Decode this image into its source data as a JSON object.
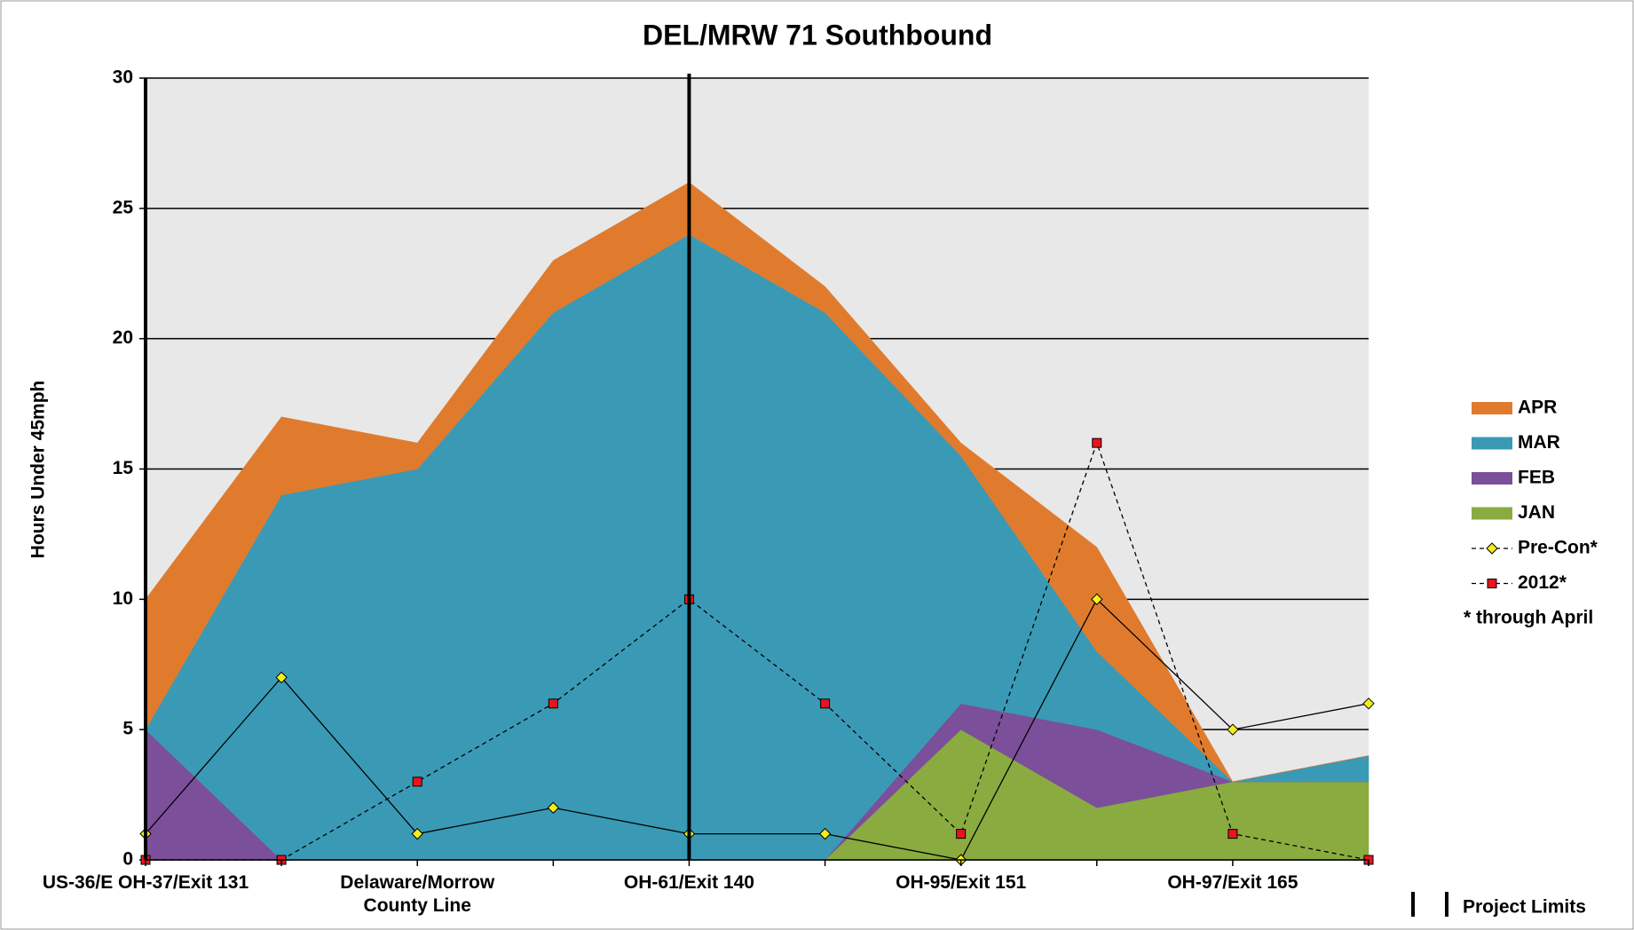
{
  "chart_data": {
    "type": "stacked_area",
    "title": "DEL/MRW 71 Southbound",
    "y_label": "Hours Under 45mph",
    "categories": [
      "US-36/E OH-37/Exit 131",
      null,
      "Delaware/Morrow\nCounty Line",
      null,
      "OH-61/Exit 140",
      null,
      "OH-95/Exit 151",
      null,
      "OH-97/Exit 165",
      null
    ],
    "series": [
      {
        "name": "JAN",
        "color": "#8aab3f",
        "kind": "area",
        "values": [
          0,
          0,
          0,
          0,
          0,
          0,
          5,
          2,
          3,
          3
        ]
      },
      {
        "name": "FEB",
        "color": "#7b4f9a",
        "kind": "area",
        "values": [
          5,
          0,
          0,
          0,
          0,
          0,
          1,
          3,
          0,
          0
        ]
      },
      {
        "name": "MAR",
        "color": "#3a9ab5",
        "kind": "area",
        "values": [
          0,
          14,
          15,
          21,
          24,
          21,
          9.5,
          3,
          0,
          1
        ]
      },
      {
        "name": "APR",
        "color": "#e07b2e",
        "kind": "area",
        "values": [
          5,
          3,
          1,
          2,
          2,
          1,
          0.5,
          4,
          0,
          0
        ]
      },
      {
        "name": "Pre-Con*",
        "color": "#f2ee1a",
        "kind": "line",
        "dashed": false,
        "values": [
          1,
          7,
          1,
          2,
          1,
          1,
          0,
          10,
          5,
          6
        ]
      },
      {
        "name": "2012*",
        "color": "#e8141e",
        "kind": "line",
        "dashed": true,
        "values": [
          0,
          0,
          3,
          6,
          10,
          6,
          1,
          16,
          1,
          0
        ]
      }
    ],
    "note": "* through April",
    "limits_label": "Project Limits",
    "ylim": [
      0,
      30
    ],
    "yticks": [
      0,
      5,
      10,
      15,
      20,
      25,
      30
    ],
    "grid": true,
    "legend": "right"
  }
}
